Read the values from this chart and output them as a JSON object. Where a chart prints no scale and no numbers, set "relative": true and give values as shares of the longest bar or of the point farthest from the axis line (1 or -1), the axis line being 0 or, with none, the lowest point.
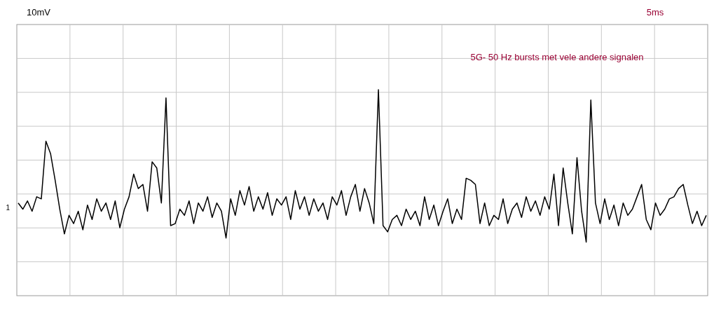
{
  "chart_data": {
    "type": "line",
    "relative": true,
    "grid": true,
    "marker": "none",
    "annotations": [
      "10mV",
      "5ms",
      "1",
      "5G- 50 Hz bursts met vele andere signalen"
    ],
    "categories": [
      null,
      null,
      null,
      null,
      null,
      null,
      null,
      null,
      null,
      null,
      null,
      null,
      null,
      null,
      null,
      null,
      null,
      null,
      null,
      null,
      null,
      null,
      null,
      null,
      null,
      null,
      null,
      null,
      null,
      null,
      null,
      null,
      null,
      null,
      null,
      null,
      null,
      null,
      null,
      null,
      null,
      null,
      null,
      null,
      null,
      null,
      null,
      null,
      null,
      null,
      null,
      null,
      null,
      null,
      null,
      null,
      null,
      null,
      null,
      null,
      null,
      null,
      null,
      null,
      null,
      null,
      null,
      null,
      null,
      null,
      null,
      null,
      null,
      null,
      null,
      null,
      null,
      null,
      null,
      null,
      null,
      null,
      null,
      null,
      null,
      null,
      null,
      null,
      null,
      null,
      null,
      null,
      null,
      null,
      null,
      null,
      null,
      null,
      null,
      null,
      null,
      null,
      null,
      null,
      null,
      null,
      null,
      null,
      null,
      null,
      null,
      null,
      null,
      null,
      null,
      null,
      null,
      null,
      null,
      null,
      null,
      null,
      null,
      null,
      null,
      null,
      null,
      null,
      null,
      null,
      null,
      null,
      null,
      null,
      null,
      null,
      null,
      null,
      null,
      null,
      null,
      null,
      null,
      null,
      null,
      null,
      null,
      null,
      null,
      null
    ],
    "series": [
      {
        "color": "#000000",
        "values": [
          0.45,
          0.42,
          0.46,
          0.41,
          0.48,
          0.47,
          0.75,
          0.69,
          0.56,
          0.42,
          0.3,
          0.39,
          0.35,
          0.41,
          0.32,
          0.44,
          0.37,
          0.47,
          0.41,
          0.45,
          0.37,
          0.46,
          0.33,
          0.42,
          0.48,
          0.59,
          0.52,
          0.54,
          0.41,
          0.65,
          0.62,
          0.45,
          0.96,
          0.34,
          0.35,
          0.42,
          0.39,
          0.46,
          0.35,
          0.45,
          0.41,
          0.48,
          0.38,
          0.45,
          0.41,
          0.28,
          0.47,
          0.39,
          0.51,
          0.44,
          0.53,
          0.41,
          0.48,
          0.42,
          0.5,
          0.39,
          0.47,
          0.44,
          0.48,
          0.37,
          0.51,
          0.42,
          0.48,
          0.39,
          0.47,
          0.41,
          0.45,
          0.37,
          0.48,
          0.44,
          0.51,
          0.39,
          0.48,
          0.54,
          0.41,
          0.52,
          0.45,
          0.35,
          1,
          0.34,
          0.31,
          0.37,
          0.39,
          0.34,
          0.42,
          0.37,
          0.41,
          0.34,
          0.48,
          0.37,
          0.44,
          0.34,
          0.41,
          0.47,
          0.35,
          0.42,
          0.37,
          0.57,
          0.56,
          0.54,
          0.35,
          0.45,
          0.34,
          0.39,
          0.37,
          0.47,
          0.35,
          0.42,
          0.45,
          0.38,
          0.48,
          0.41,
          0.46,
          0.39,
          0.48,
          0.42,
          0.59,
          0.34,
          0.62,
          0.45,
          0.3,
          0.67,
          0.41,
          0.26,
          0.95,
          0.45,
          0.35,
          0.47,
          0.37,
          0.44,
          0.34,
          0.45,
          0.39,
          0.42,
          0.48,
          0.54,
          0.37,
          0.32,
          0.45,
          0.39,
          0.42,
          0.47,
          0.48,
          0.52,
          0.54,
          0.44,
          0.35,
          0.41,
          0.34,
          0.39
        ]
      }
    ]
  }
}
